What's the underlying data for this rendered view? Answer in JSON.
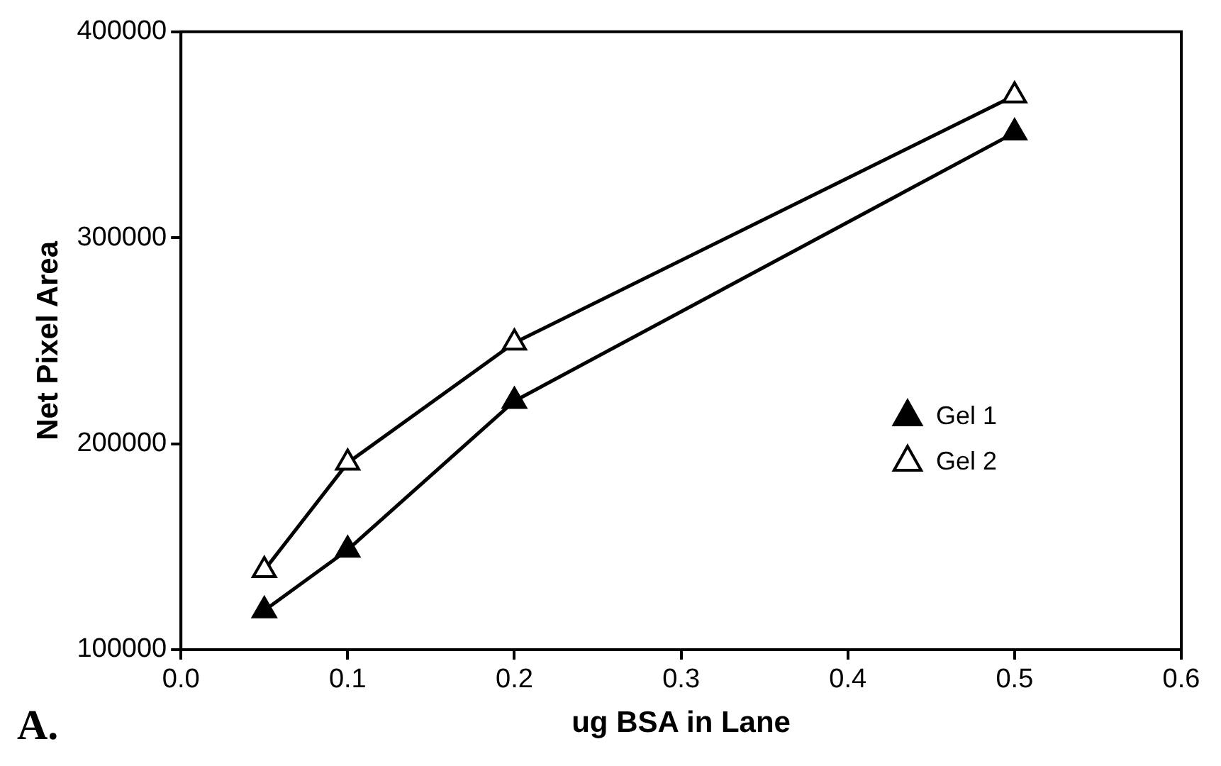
{
  "chart_data": {
    "type": "line",
    "xlabel": "ug BSA in Lane",
    "ylabel": "Net Pixel Area",
    "xlim": [
      0,
      0.6
    ],
    "xticks": [
      {
        "value": 0,
        "label": "0.0"
      },
      {
        "value": 0.1,
        "label": "0.1"
      },
      {
        "value": 0.2,
        "label": "0.2"
      },
      {
        "value": 0.3,
        "label": "0.3"
      },
      {
        "value": 0.4,
        "label": "0.4"
      },
      {
        "value": 0.5,
        "label": "0.5"
      },
      {
        "value": 0.6,
        "label": "0.6"
      }
    ],
    "ylim": [
      100000,
      400000
    ],
    "yticks": [
      100000,
      200000,
      300000,
      400000
    ],
    "x": [
      0.05,
      0.1,
      0.2,
      0.5
    ],
    "series": [
      {
        "name": "Gel 1",
        "color": "#000000",
        "values": [
          119000,
          148500,
          220700,
          351000
        ]
      },
      {
        "name": "Gel 2",
        "color": "#000000",
        "values": [
          138600,
          190700,
          249000,
          369000
        ]
      }
    ],
    "marker": "triangle",
    "line_style": "solid",
    "grid": false,
    "legend": "right",
    "annotations": [
      "A."
    ]
  }
}
